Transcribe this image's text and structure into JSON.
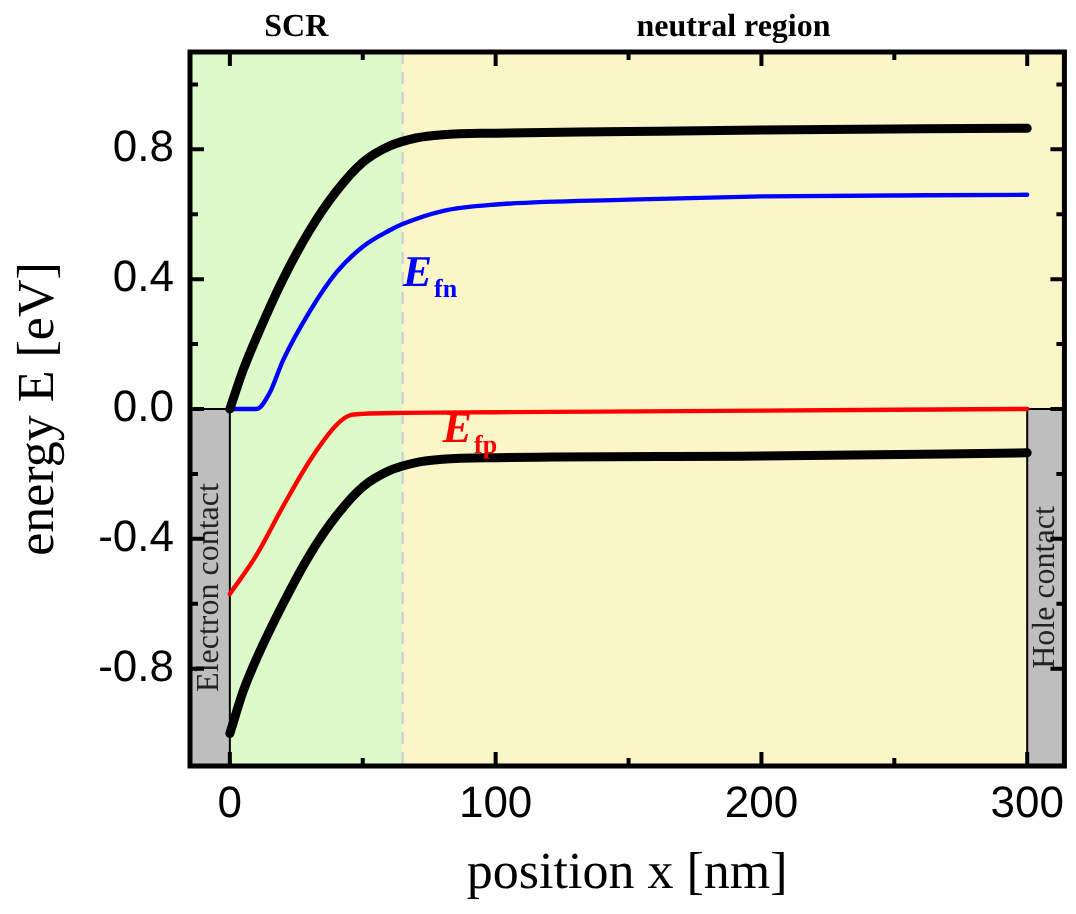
{
  "chart_data": {
    "type": "line",
    "xlabel": "position x [nm]",
    "ylabel": "energy E [eV]",
    "xlim": [
      -15,
      314
    ],
    "ylim": [
      -1.1,
      1.1
    ],
    "xticks": [
      0,
      {
        "value": 50,
        "label": null
      },
      100,
      {
        "value": 150,
        "label": null
      },
      200,
      {
        "value": 250,
        "label": null
      },
      300
    ],
    "yticks": [
      -0.8,
      {
        "value": -0.6,
        "label": null
      },
      -0.4,
      {
        "value": -0.2,
        "label": null
      },
      {
        "value": 0,
        "label": "0.0"
      },
      {
        "value": 0.2,
        "label": null
      },
      0.4,
      {
        "value": 0.6,
        "label": null
      },
      0.8,
      {
        "value": 1.0,
        "label": null
      }
    ],
    "grid": false,
    "legend": false,
    "marker": "none",
    "line_style": "solid",
    "bands": [
      {
        "axis": "x",
        "from": -15,
        "to": 65,
        "label": "SCR",
        "color": "#ddfbc8"
      },
      {
        "axis": "x",
        "from": 65,
        "to": 314,
        "label": "neutral region",
        "color": "#faf6c8"
      },
      {
        "axis": "x",
        "from": -15,
        "to": 0,
        "label": "Electron contact",
        "color": "#bebebe"
      },
      {
        "axis": "x",
        "from": 300,
        "to": 314,
        "label": "Hole contact",
        "color": "#bebebe"
      }
    ],
    "ref_lines": [
      {
        "axis": "x",
        "value": 65,
        "color": "#d0d0d0",
        "line_style": "dashed"
      }
    ],
    "series": [
      {
        "color": "#000000",
        "x": [
          0,
          5,
          10,
          20,
          30,
          40,
          50,
          60,
          70,
          80,
          100,
          150,
          200,
          300
        ],
        "values": [
          0,
          0.12,
          0.22,
          0.4,
          0.55,
          0.67,
          0.76,
          0.81,
          0.835,
          0.845,
          0.85,
          0.855,
          0.86,
          0.865
        ]
      },
      {
        "name": "E$_{fn}$",
        "color": "#0000ff",
        "x": [
          0,
          10,
          15,
          20,
          30,
          40,
          50,
          60,
          65,
          80,
          100,
          150,
          200,
          300
        ],
        "values": [
          0,
          0,
          0.05,
          0.15,
          0.3,
          0.42,
          0.5,
          0.55,
          0.57,
          0.61,
          0.63,
          0.645,
          0.655,
          0.66
        ]
      },
      {
        "name": "E$_{fp}$",
        "color": "#ff0000",
        "x": [
          0,
          10,
          20,
          30,
          40,
          45,
          50,
          65,
          100,
          200,
          300
        ],
        "values": [
          -0.57,
          -0.45,
          -0.3,
          -0.16,
          -0.05,
          -0.02,
          -0.015,
          -0.012,
          -0.01,
          -0.005,
          0.0
        ]
      },
      {
        "color": "#000000",
        "x": [
          0,
          5,
          10,
          20,
          30,
          40,
          50,
          60,
          70,
          80,
          100,
          200,
          300
        ],
        "values": [
          -1.0,
          -0.87,
          -0.77,
          -0.6,
          -0.45,
          -0.33,
          -0.24,
          -0.19,
          -0.165,
          -0.155,
          -0.15,
          -0.145,
          -0.135
        ]
      }
    ]
  }
}
